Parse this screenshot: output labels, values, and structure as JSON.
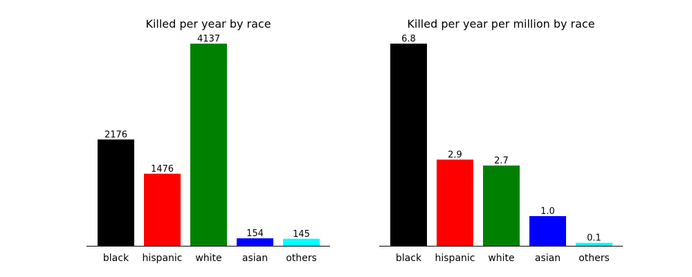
{
  "chart_data": [
    {
      "type": "bar",
      "title": "Killed per year by race",
      "categories": [
        "black",
        "hispanic",
        "white",
        "asian",
        "others"
      ],
      "values": [
        2176,
        1476,
        4137,
        154,
        145
      ],
      "value_labels": [
        "2176",
        "1476",
        "4137",
        "154",
        "145"
      ],
      "colors": [
        "#000000",
        "#ff0000",
        "#008000",
        "#0000ff",
        "#00ffff"
      ],
      "ylim": [
        0,
        4137
      ],
      "xlabel": "",
      "ylabel": "",
      "grid": false,
      "y_axis_visible": false
    },
    {
      "type": "bar",
      "title": "Killed per year per million by race",
      "categories": [
        "black",
        "hispanic",
        "white",
        "asian",
        "others"
      ],
      "values": [
        6.8,
        2.9,
        2.7,
        1.0,
        0.1
      ],
      "value_labels": [
        "6.8",
        "2.9",
        "2.7",
        "1.0",
        "0.1"
      ],
      "colors": [
        "#000000",
        "#ff0000",
        "#008000",
        "#0000ff",
        "#00ffff"
      ],
      "ylim": [
        0,
        6.8
      ],
      "xlabel": "",
      "ylabel": "",
      "grid": false,
      "y_axis_visible": false
    }
  ]
}
